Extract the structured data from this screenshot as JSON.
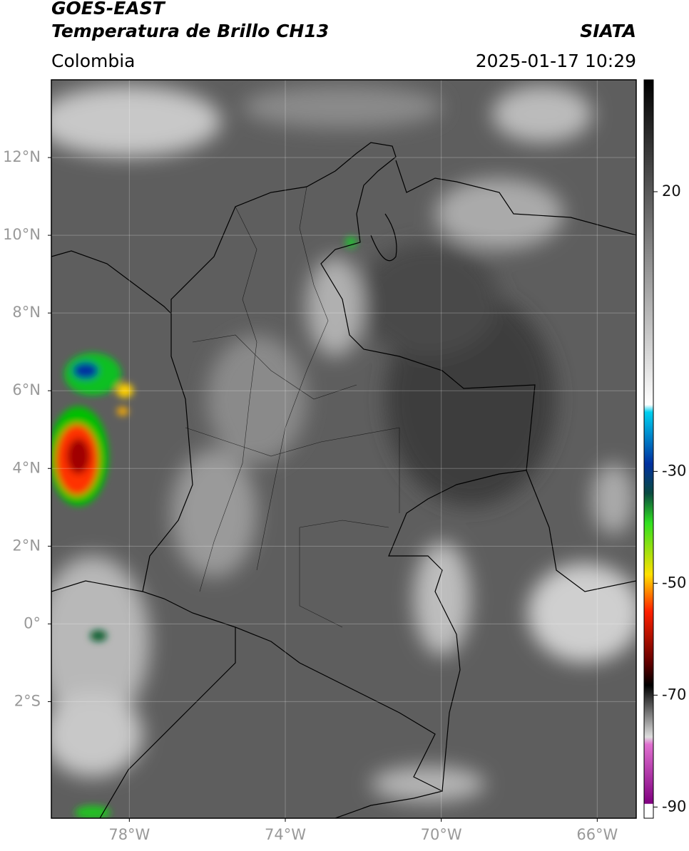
{
  "header": {
    "satellite": "GOES-EAST",
    "product": "Temperatura de Brillo CH13",
    "institution": "SIATA",
    "region": "Colombia",
    "datetime": "2025-01-17 10:29"
  },
  "map": {
    "lon_range": [
      -80,
      -65
    ],
    "lat_range": [
      -5,
      14
    ],
    "lat_ticks": [
      {
        "value": 12,
        "label": "12°N"
      },
      {
        "value": 10,
        "label": "10°N"
      },
      {
        "value": 8,
        "label": "8°N"
      },
      {
        "value": 6,
        "label": "6°N"
      },
      {
        "value": 4,
        "label": "4°N"
      },
      {
        "value": 2,
        "label": "2°N"
      },
      {
        "value": 0,
        "label": "0°"
      },
      {
        "value": -2,
        "label": "2°S"
      }
    ],
    "lon_ticks": [
      {
        "value": -78,
        "label": "78°W"
      },
      {
        "value": -74,
        "label": "74°W"
      },
      {
        "value": -70,
        "label": "70°W"
      },
      {
        "value": -66,
        "label": "66°W"
      }
    ]
  },
  "colorbar": {
    "range": [
      -92,
      40
    ],
    "ticks": [
      20,
      -30,
      -50,
      -70,
      -90
    ]
  }
}
